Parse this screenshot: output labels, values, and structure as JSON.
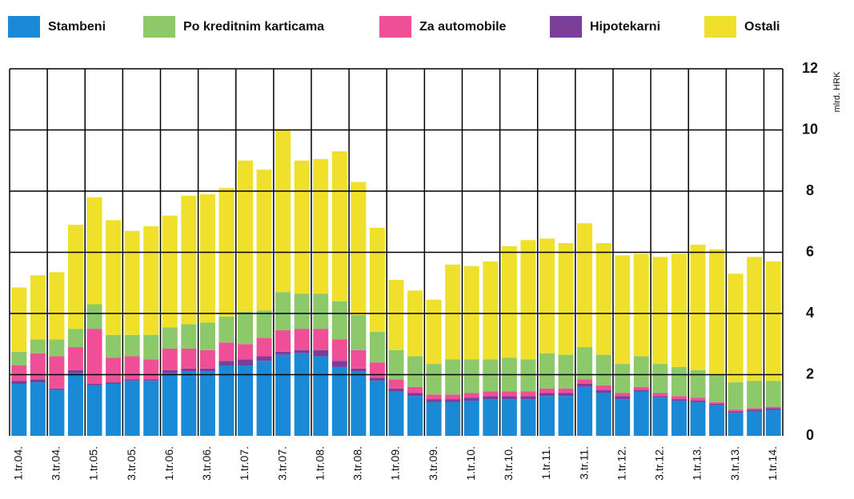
{
  "chart_data": {
    "type": "stacked_bar",
    "categories": [
      "1.tr.04.",
      null,
      "3.tr.04.",
      null,
      "1.tr.05.",
      null,
      "3.tr.05.",
      null,
      "1.tr.06.",
      null,
      "3.tr.06.",
      null,
      "1.tr.07.",
      null,
      "3.tr.07.",
      null,
      "1.tr.08.",
      null,
      "3.tr.08.",
      null,
      "1.tr.09.",
      null,
      "3.tr.09.",
      null,
      "1.tr.10.",
      null,
      "3.tr.10.",
      null,
      "1.tr.11.",
      null,
      "3.tr.11.",
      null,
      "1.tr.12.",
      null,
      "3.tr.12.",
      null,
      "1.tr.13.",
      null,
      "3.tr.13.",
      null,
      "1.tr.14."
    ],
    "series": [
      {
        "name": "Stambeni",
        "color": "#1a8ad6",
        "values": [
          1.7,
          1.75,
          1.5,
          2.05,
          1.65,
          1.7,
          1.8,
          1.8,
          2.05,
          2.1,
          2.1,
          2.3,
          2.3,
          2.45,
          2.65,
          2.7,
          2.6,
          2.25,
          2.1,
          1.8,
          1.45,
          1.3,
          1.1,
          1.1,
          1.15,
          1.2,
          1.2,
          1.2,
          1.3,
          1.3,
          1.6,
          1.4,
          1.2,
          1.45,
          1.25,
          1.15,
          1.1,
          1.0,
          0.75,
          0.8,
          0.85
        ]
      },
      {
        "name": "Po kreditnim karticama",
        "color": "#8cc96b",
        "values": [
          0.45,
          0.45,
          0.55,
          0.6,
          0.8,
          0.75,
          0.7,
          0.8,
          0.7,
          0.8,
          0.9,
          0.85,
          1.05,
          0.9,
          1.25,
          1.15,
          1.15,
          1.25,
          1.15,
          1.0,
          0.95,
          1.0,
          1.0,
          1.15,
          1.1,
          1.05,
          1.1,
          1.05,
          1.15,
          1.1,
          1.05,
          1.0,
          0.95,
          1.0,
          0.95,
          0.95,
          0.9,
          0.9,
          0.9,
          0.9,
          0.85
        ]
      },
      {
        "name": "Za automobile",
        "color": "#ee4f97",
        "values": [
          0.5,
          0.85,
          1.05,
          0.75,
          1.8,
          0.8,
          0.75,
          0.65,
          0.7,
          0.65,
          0.6,
          0.6,
          0.5,
          0.6,
          0.7,
          0.7,
          0.7,
          0.7,
          0.6,
          0.5,
          0.3,
          0.2,
          0.15,
          0.15,
          0.15,
          0.15,
          0.15,
          0.15,
          0.15,
          0.15,
          0.15,
          0.15,
          0.1,
          0.1,
          0.1,
          0.1,
          0.1,
          0.05,
          0.05,
          0.05,
          0.05
        ]
      },
      {
        "name": "Hipotekarni",
        "color": "#7b3f99",
        "values": [
          0.1,
          0.1,
          0.05,
          0.1,
          0.05,
          0.05,
          0.05,
          0.05,
          0.1,
          0.1,
          0.1,
          0.15,
          0.2,
          0.15,
          0.1,
          0.1,
          0.2,
          0.2,
          0.1,
          0.1,
          0.1,
          0.1,
          0.1,
          0.1,
          0.1,
          0.1,
          0.1,
          0.1,
          0.1,
          0.1,
          0.1,
          0.1,
          0.1,
          0.05,
          0.05,
          0.05,
          0.05,
          0.05,
          0.05,
          0.05,
          0.05
        ]
      },
      {
        "name": "Ostali",
        "color": "#efe12b",
        "values": [
          2.1,
          2.1,
          2.2,
          3.4,
          3.5,
          3.75,
          3.4,
          3.55,
          3.65,
          4.2,
          4.2,
          4.2,
          4.95,
          4.6,
          5.3,
          4.35,
          4.4,
          4.9,
          4.35,
          3.4,
          2.3,
          2.15,
          2.1,
          3.1,
          3.05,
          3.2,
          3.65,
          3.9,
          3.75,
          3.65,
          4.05,
          3.65,
          3.55,
          3.35,
          3.5,
          3.7,
          4.1,
          4.1,
          3.55,
          4.05,
          3.9
        ]
      }
    ],
    "y_label": "mlrd. HRK",
    "ylim": [
      0,
      12
    ],
    "yticks": [
      0,
      2,
      4,
      6,
      8,
      10,
      12
    ],
    "grid": true,
    "legend": "top"
  }
}
